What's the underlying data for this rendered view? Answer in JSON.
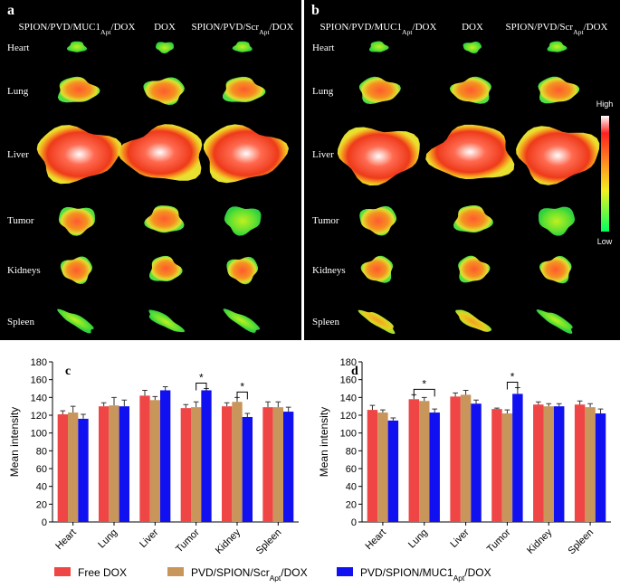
{
  "panels": [
    {
      "label": "a",
      "columns": [
        {
          "parts": [
            "SPION/PVD/MUC1",
            "Apt",
            "/DOX"
          ]
        },
        {
          "parts": [
            "DOX"
          ]
        },
        {
          "parts": [
            "SPION/PVD/Scr",
            "Apt",
            "/DOX"
          ]
        }
      ],
      "rows": [
        "Heart",
        "Lung",
        "Liver",
        "Tumor",
        "Kidneys",
        "Spleen"
      ]
    },
    {
      "label": "b",
      "columns": [
        {
          "parts": [
            "SPION/PVD/MUC1",
            "Apt",
            "/DOX"
          ]
        },
        {
          "parts": [
            "DOX"
          ]
        },
        {
          "parts": [
            "SPION/PVD/Scr",
            "Apt",
            "/DOX"
          ]
        }
      ],
      "rows": [
        "Heart",
        "Lung",
        "Liver",
        "Tumor",
        "Kidneys",
        "Spleen"
      ]
    }
  ],
  "colorbar": {
    "high": "High",
    "low": "Low"
  },
  "chart_data": [
    {
      "type": "bar",
      "panel": "c",
      "y_label": "Mean intensity",
      "categories": [
        "Heart",
        "Lung",
        "Liver",
        "Tumor",
        "Kidney",
        "Spleen"
      ],
      "ylim": [
        0,
        180
      ],
      "yticks": [
        0,
        20,
        40,
        60,
        80,
        100,
        120,
        140,
        160,
        180
      ],
      "series": [
        {
          "name": [
            "Free DOX"
          ],
          "color": "#f04545",
          "values": [
            121,
            130,
            142,
            128,
            130,
            129
          ],
          "errors": [
            4,
            4,
            6,
            4,
            4,
            6
          ]
        },
        {
          "name": [
            "PVD/SPION/Scr",
            "Apt",
            "/DOX"
          ],
          "color": "#c8955a",
          "values": [
            123,
            131,
            137,
            129,
            135,
            129
          ],
          "errors": [
            7,
            9,
            4,
            6,
            5,
            6
          ]
        },
        {
          "name": [
            "PVD/SPION/MUC1",
            "Apt",
            "/DOX"
          ],
          "color": "#1010f0",
          "values": [
            116,
            130,
            148,
            148,
            118,
            124
          ],
          "errors": [
            5,
            7,
            4,
            2,
            4,
            5
          ]
        }
      ],
      "annotations": [
        {
          "text": "*",
          "category": 3,
          "series": [
            1,
            2
          ]
        },
        {
          "text": "*",
          "category": 4,
          "series": [
            1,
            2
          ]
        }
      ]
    },
    {
      "type": "bar",
      "panel": "d",
      "y_label": "Mean intensity",
      "categories": [
        "Heart",
        "Lung",
        "Liver",
        "Tumor",
        "Kidney",
        "Spleen"
      ],
      "ylim": [
        0,
        180
      ],
      "yticks": [
        0,
        20,
        40,
        60,
        80,
        100,
        120,
        140,
        160,
        180
      ],
      "series": [
        {
          "color": "#f04545",
          "values": [
            126,
            138,
            141,
            127,
            132,
            132
          ],
          "errors": [
            5,
            5,
            4,
            1,
            3,
            4
          ]
        },
        {
          "color": "#c8955a",
          "values": [
            123,
            136,
            143,
            122,
            130,
            129
          ],
          "errors": [
            3,
            4,
            5,
            4,
            3,
            4
          ]
        },
        {
          "color": "#1010f0",
          "values": [
            114,
            123,
            133,
            144,
            130,
            122
          ],
          "errors": [
            3,
            4,
            4,
            7,
            3,
            5
          ]
        }
      ],
      "annotations": [
        {
          "text": "*",
          "category": 1,
          "series": [
            0,
            2
          ]
        },
        {
          "text": "*",
          "category": 3,
          "series": [
            1,
            2
          ]
        }
      ]
    }
  ]
}
